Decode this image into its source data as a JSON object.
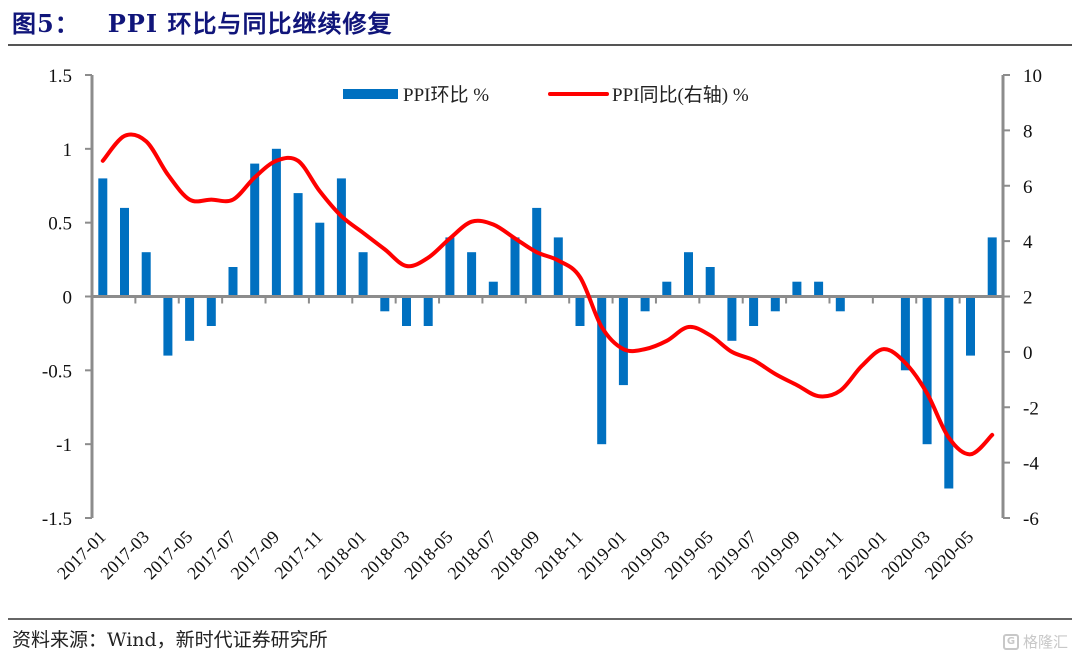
{
  "figure": {
    "title": "图5：   PPI 环比与同比继续修复",
    "source": "资料来源：Wind，新时代证券研究所",
    "watermark": "格隆汇",
    "watermark_icon": "G-logo-icon"
  },
  "colors": {
    "title": "#10157a",
    "bar": "#0070c0",
    "line": "#ff0000",
    "axis": "#8c8c8c"
  },
  "chart_data": {
    "type": "bar+line",
    "title": "PPI 环比与同比继续修复",
    "xlabel": "",
    "ylabel_left": "",
    "ylabel_right": "",
    "categories": [
      "2017-01",
      "2017-02",
      "2017-03",
      "2017-04",
      "2017-05",
      "2017-06",
      "2017-07",
      "2017-08",
      "2017-09",
      "2017-10",
      "2017-11",
      "2017-12",
      "2018-01",
      "2018-02",
      "2018-03",
      "2018-04",
      "2018-05",
      "2018-06",
      "2018-07",
      "2018-08",
      "2018-09",
      "2018-10",
      "2018-11",
      "2018-12",
      "2019-01",
      "2019-02",
      "2019-03",
      "2019-04",
      "2019-05",
      "2019-06",
      "2019-07",
      "2019-08",
      "2019-09",
      "2019-10",
      "2019-11",
      "2019-12",
      "2020-01",
      "2020-02",
      "2020-03",
      "2020-04",
      "2020-05",
      "2020-06"
    ],
    "x_tick_labels": [
      "2017-01",
      "2017-03",
      "2017-05",
      "2017-07",
      "2017-09",
      "2017-11",
      "2018-01",
      "2018-03",
      "2018-05",
      "2018-07",
      "2018-09",
      "2018-11",
      "2019-01",
      "2019-03",
      "2019-05",
      "2019-07",
      "2019-09",
      "2019-11",
      "2020-01",
      "2020-03",
      "2020-05"
    ],
    "series": [
      {
        "name": "PPI环比 %",
        "type": "bar",
        "axis": "left",
        "values": [
          0.8,
          0.6,
          0.3,
          -0.4,
          -0.3,
          -0.2,
          0.2,
          0.9,
          1.0,
          0.7,
          0.5,
          0.8,
          0.3,
          -0.1,
          -0.2,
          -0.2,
          0.4,
          0.3,
          0.1,
          0.4,
          0.6,
          0.4,
          -0.2,
          -1.0,
          -0.6,
          -0.1,
          0.1,
          0.3,
          0.2,
          -0.3,
          -0.2,
          -0.1,
          0.1,
          0.1,
          -0.1,
          0.0,
          0.0,
          -0.5,
          -1.0,
          -1.3,
          -0.4,
          0.4
        ]
      },
      {
        "name": "PPI同比(右轴) %",
        "type": "line",
        "axis": "right",
        "values": [
          6.9,
          7.8,
          7.6,
          6.4,
          5.5,
          5.5,
          5.5,
          6.3,
          6.9,
          6.9,
          5.8,
          4.9,
          4.3,
          3.7,
          3.1,
          3.4,
          4.1,
          4.7,
          4.6,
          4.1,
          3.6,
          3.3,
          2.7,
          0.9,
          0.1,
          0.1,
          0.4,
          0.9,
          0.6,
          0.0,
          -0.3,
          -0.8,
          -1.2,
          -1.6,
          -1.4,
          -0.5,
          0.1,
          -0.4,
          -1.5,
          -3.1,
          -3.7,
          -3.0
        ]
      }
    ],
    "y_left": {
      "range": [
        -1.5,
        1.5
      ],
      "ticks": [
        1.5,
        1,
        0.5,
        0,
        -0.5,
        -1,
        -1.5
      ],
      "tick_labels": [
        "1.5",
        "1",
        "0.5",
        "0",
        "-0.5",
        "-1",
        "-1.5"
      ]
    },
    "y_right": {
      "range": [
        -6,
        10
      ],
      "ticks": [
        10,
        8,
        6,
        4,
        2,
        0,
        -2,
        -4,
        -6
      ],
      "tick_labels": [
        "10",
        "8",
        "6",
        "4",
        "2",
        "0",
        "-2",
        "-4",
        "-6"
      ]
    },
    "grid": false,
    "legend": {
      "position": "top-center",
      "entries": [
        "PPI环比 %",
        "PPI同比(右轴) %"
      ]
    }
  }
}
